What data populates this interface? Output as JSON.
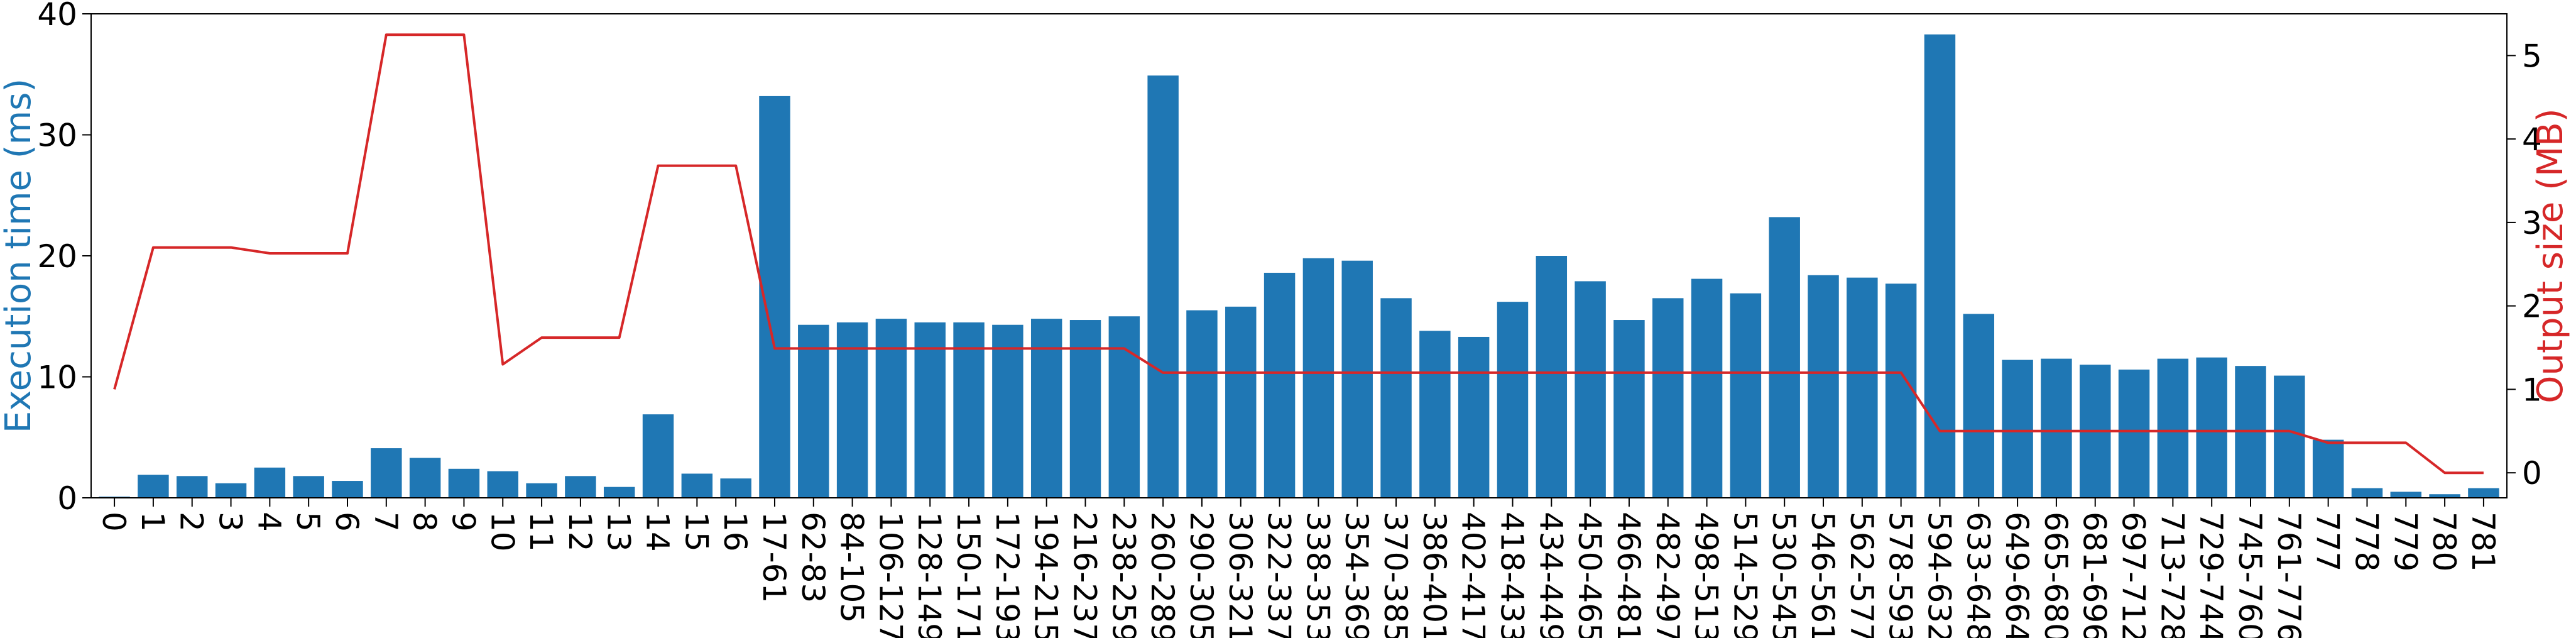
{
  "chart_data": {
    "type": "bar",
    "title": "",
    "xlabel": "",
    "ylabel": "Execution time (ms)",
    "y2label": "Output size (MB)",
    "ylim": [
      0,
      40
    ],
    "y2lim": [
      -0.3,
      5.5
    ],
    "yticks": [
      0,
      10,
      20,
      30,
      40
    ],
    "y2ticks": [
      0,
      1,
      2,
      3,
      4,
      5
    ],
    "grid": false,
    "legend": "none",
    "colors": {
      "bar": "#1f77b4",
      "line": "#d62728",
      "ylabel": "#1f77b4",
      "y2label": "#d62728"
    },
    "categories": [
      "0",
      "1",
      "2",
      "3",
      "4",
      "5",
      "6",
      "7",
      "8",
      "9",
      "10",
      "11",
      "12",
      "13",
      "14",
      "15",
      "16",
      "17-61",
      "62-83",
      "84-105",
      "106-127",
      "128-149",
      "150-171",
      "172-193",
      "194-215",
      "216-237",
      "238-259",
      "260-289",
      "290-305",
      "306-321",
      "322-337",
      "338-353",
      "354-369",
      "370-385",
      "386-401",
      "402-417",
      "418-433",
      "434-449",
      "450-465",
      "466-481",
      "482-497",
      "498-513",
      "514-529",
      "530-545",
      "546-561",
      "562-577",
      "578-593",
      "594-632",
      "633-648",
      "649-664",
      "665-680",
      "681-696",
      "697-712",
      "713-728",
      "729-744",
      "745-760",
      "761-776",
      "777",
      "778",
      "779",
      "780",
      "781"
    ],
    "series": [
      {
        "axis": "left",
        "kind": "bar",
        "values": [
          0.1,
          1.9,
          1.8,
          1.2,
          2.5,
          1.8,
          1.4,
          4.1,
          3.3,
          2.4,
          2.2,
          1.2,
          1.8,
          0.9,
          6.9,
          2.0,
          1.6,
          33.2,
          14.3,
          14.5,
          14.8,
          14.5,
          14.5,
          14.3,
          14.8,
          14.7,
          15.0,
          34.9,
          15.5,
          15.8,
          18.6,
          19.8,
          19.6,
          16.5,
          13.8,
          13.3,
          16.2,
          20.0,
          17.9,
          14.7,
          16.5,
          18.1,
          16.9,
          23.2,
          18.4,
          18.2,
          17.7,
          38.3,
          15.2,
          11.4,
          11.5,
          11.0,
          10.6,
          11.5,
          11.6,
          10.9,
          10.1,
          4.8,
          0.8,
          0.5,
          0.3,
          0.8
        ]
      },
      {
        "axis": "right",
        "kind": "line",
        "values": [
          1.0,
          2.7,
          2.7,
          2.7,
          2.63,
          2.63,
          2.63,
          5.25,
          5.25,
          5.25,
          1.3,
          1.62,
          1.62,
          1.62,
          3.68,
          3.68,
          3.68,
          1.49,
          1.49,
          1.49,
          1.49,
          1.49,
          1.49,
          1.49,
          1.49,
          1.49,
          1.49,
          1.2,
          1.2,
          1.2,
          1.2,
          1.2,
          1.2,
          1.2,
          1.2,
          1.2,
          1.2,
          1.2,
          1.2,
          1.2,
          1.2,
          1.2,
          1.2,
          1.2,
          1.2,
          1.2,
          1.2,
          0.5,
          0.5,
          0.5,
          0.5,
          0.5,
          0.5,
          0.5,
          0.5,
          0.5,
          0.5,
          0.36,
          0.36,
          0.36,
          0.0,
          0.0
        ]
      }
    ]
  }
}
